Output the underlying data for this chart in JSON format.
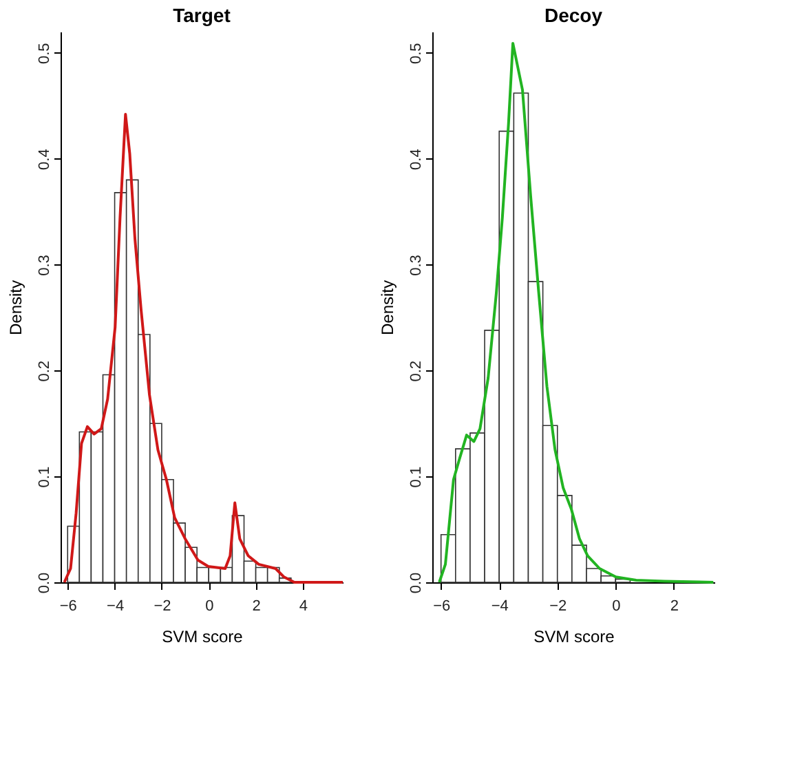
{
  "chart_data": [
    {
      "type": "histogram",
      "title": "Target",
      "xlabel": "SVM score",
      "ylabel": "Density",
      "xlim": [
        -6.3,
        5.7
      ],
      "xticks": [
        -6,
        -4,
        -2,
        0,
        2,
        4
      ],
      "ylim": [
        0,
        0.52
      ],
      "yticks": [
        {
          "value": 0,
          "label": "0.0"
        },
        0.1,
        0.2,
        0.3,
        0.4,
        0.5
      ],
      "grid": false,
      "series": [
        {
          "type": "histogram",
          "color": "#ffffff",
          "bins": [
            -6,
            -5.5,
            -5,
            -4.5,
            -4,
            -3.5,
            -3,
            -2.5,
            -2,
            -1.5,
            -1,
            -0.5,
            0,
            0.5,
            1,
            1.5,
            2,
            2.5,
            3,
            3.5
          ],
          "values": [
            0.053,
            0.142,
            0.142,
            0.196,
            0.368,
            0.38,
            0.234,
            0.15,
            0.097,
            0.056,
            0.033,
            0.014,
            0.014,
            0.014,
            0.063,
            0.02,
            0.014,
            0.014,
            0.004
          ]
        },
        {
          "type": "line",
          "color": "#d01818",
          "x": [
            -6.14,
            -5.875,
            -5.64,
            -5.41,
            -5.16,
            -4.875,
            -4.57,
            -4.3,
            -3.98,
            -3.77,
            -3.54,
            -3.36,
            -3.14,
            -2.875,
            -2.52,
            -2.16,
            -1.8,
            -1.45,
            -1.0,
            -0.46,
            -0.02,
            0.7,
            0.91,
            1.11,
            1.32,
            1.68,
            2.125,
            2.84,
            3.2,
            3.64,
            5.7
          ],
          "values": [
            0,
            0.013,
            0.065,
            0.131,
            0.147,
            0.14,
            0.145,
            0.173,
            0.241,
            0.345,
            0.442,
            0.405,
            0.325,
            0.257,
            0.177,
            0.125,
            0.097,
            0.061,
            0.041,
            0.021,
            0.015,
            0.013,
            0.025,
            0.075,
            0.041,
            0.025,
            0.017,
            0.013,
            0.005,
            0,
            0
          ]
        }
      ]
    },
    {
      "type": "histogram",
      "title": "Decoy",
      "xlabel": "SVM score",
      "ylabel": "Density",
      "xlim": [
        -6.3,
        3.4
      ],
      "xticks": [
        -6,
        -4,
        -2,
        0,
        2
      ],
      "ylim": [
        0,
        0.52
      ],
      "yticks": [
        {
          "value": 0,
          "label": "0.0"
        },
        0.1,
        0.2,
        0.3,
        0.4,
        0.5
      ],
      "grid": false,
      "series": [
        {
          "type": "histogram",
          "color": "#ffffff",
          "bins": [
            -6,
            -5.5,
            -5,
            -4.5,
            -4,
            -3.5,
            -3,
            -2.5,
            -2,
            -1.5,
            -1,
            -0.5,
            0,
            0.5,
            1,
            1.5,
            2
          ],
          "values": [
            0.045,
            0.126,
            0.141,
            0.238,
            0.426,
            0.462,
            0.284,
            0.148,
            0.082,
            0.035,
            0.013,
            0.006,
            0.003,
            null,
            null,
            null
          ]
        },
        {
          "type": "line",
          "color": "#22b422",
          "x": [
            -6.06,
            -5.85,
            -5.57,
            -5.36,
            -5.12,
            -4.87,
            -4.66,
            -4.38,
            -4.1,
            -3.89,
            -3.68,
            -3.53,
            -3.2,
            -2.92,
            -2.64,
            -2.36,
            -2.08,
            -1.8,
            -1.52,
            -1.24,
            -0.96,
            -0.55,
            0.01,
            0.71,
            1.68,
            3.36
          ],
          "values": [
            0,
            0.017,
            0.097,
            0.117,
            0.139,
            0.133,
            0.145,
            0.193,
            0.273,
            0.345,
            0.433,
            0.509,
            0.465,
            0.365,
            0.273,
            0.185,
            0.125,
            0.089,
            0.069,
            0.041,
            0.025,
            0.013,
            0.005,
            0.002,
            0.001,
            0
          ]
        }
      ]
    }
  ]
}
